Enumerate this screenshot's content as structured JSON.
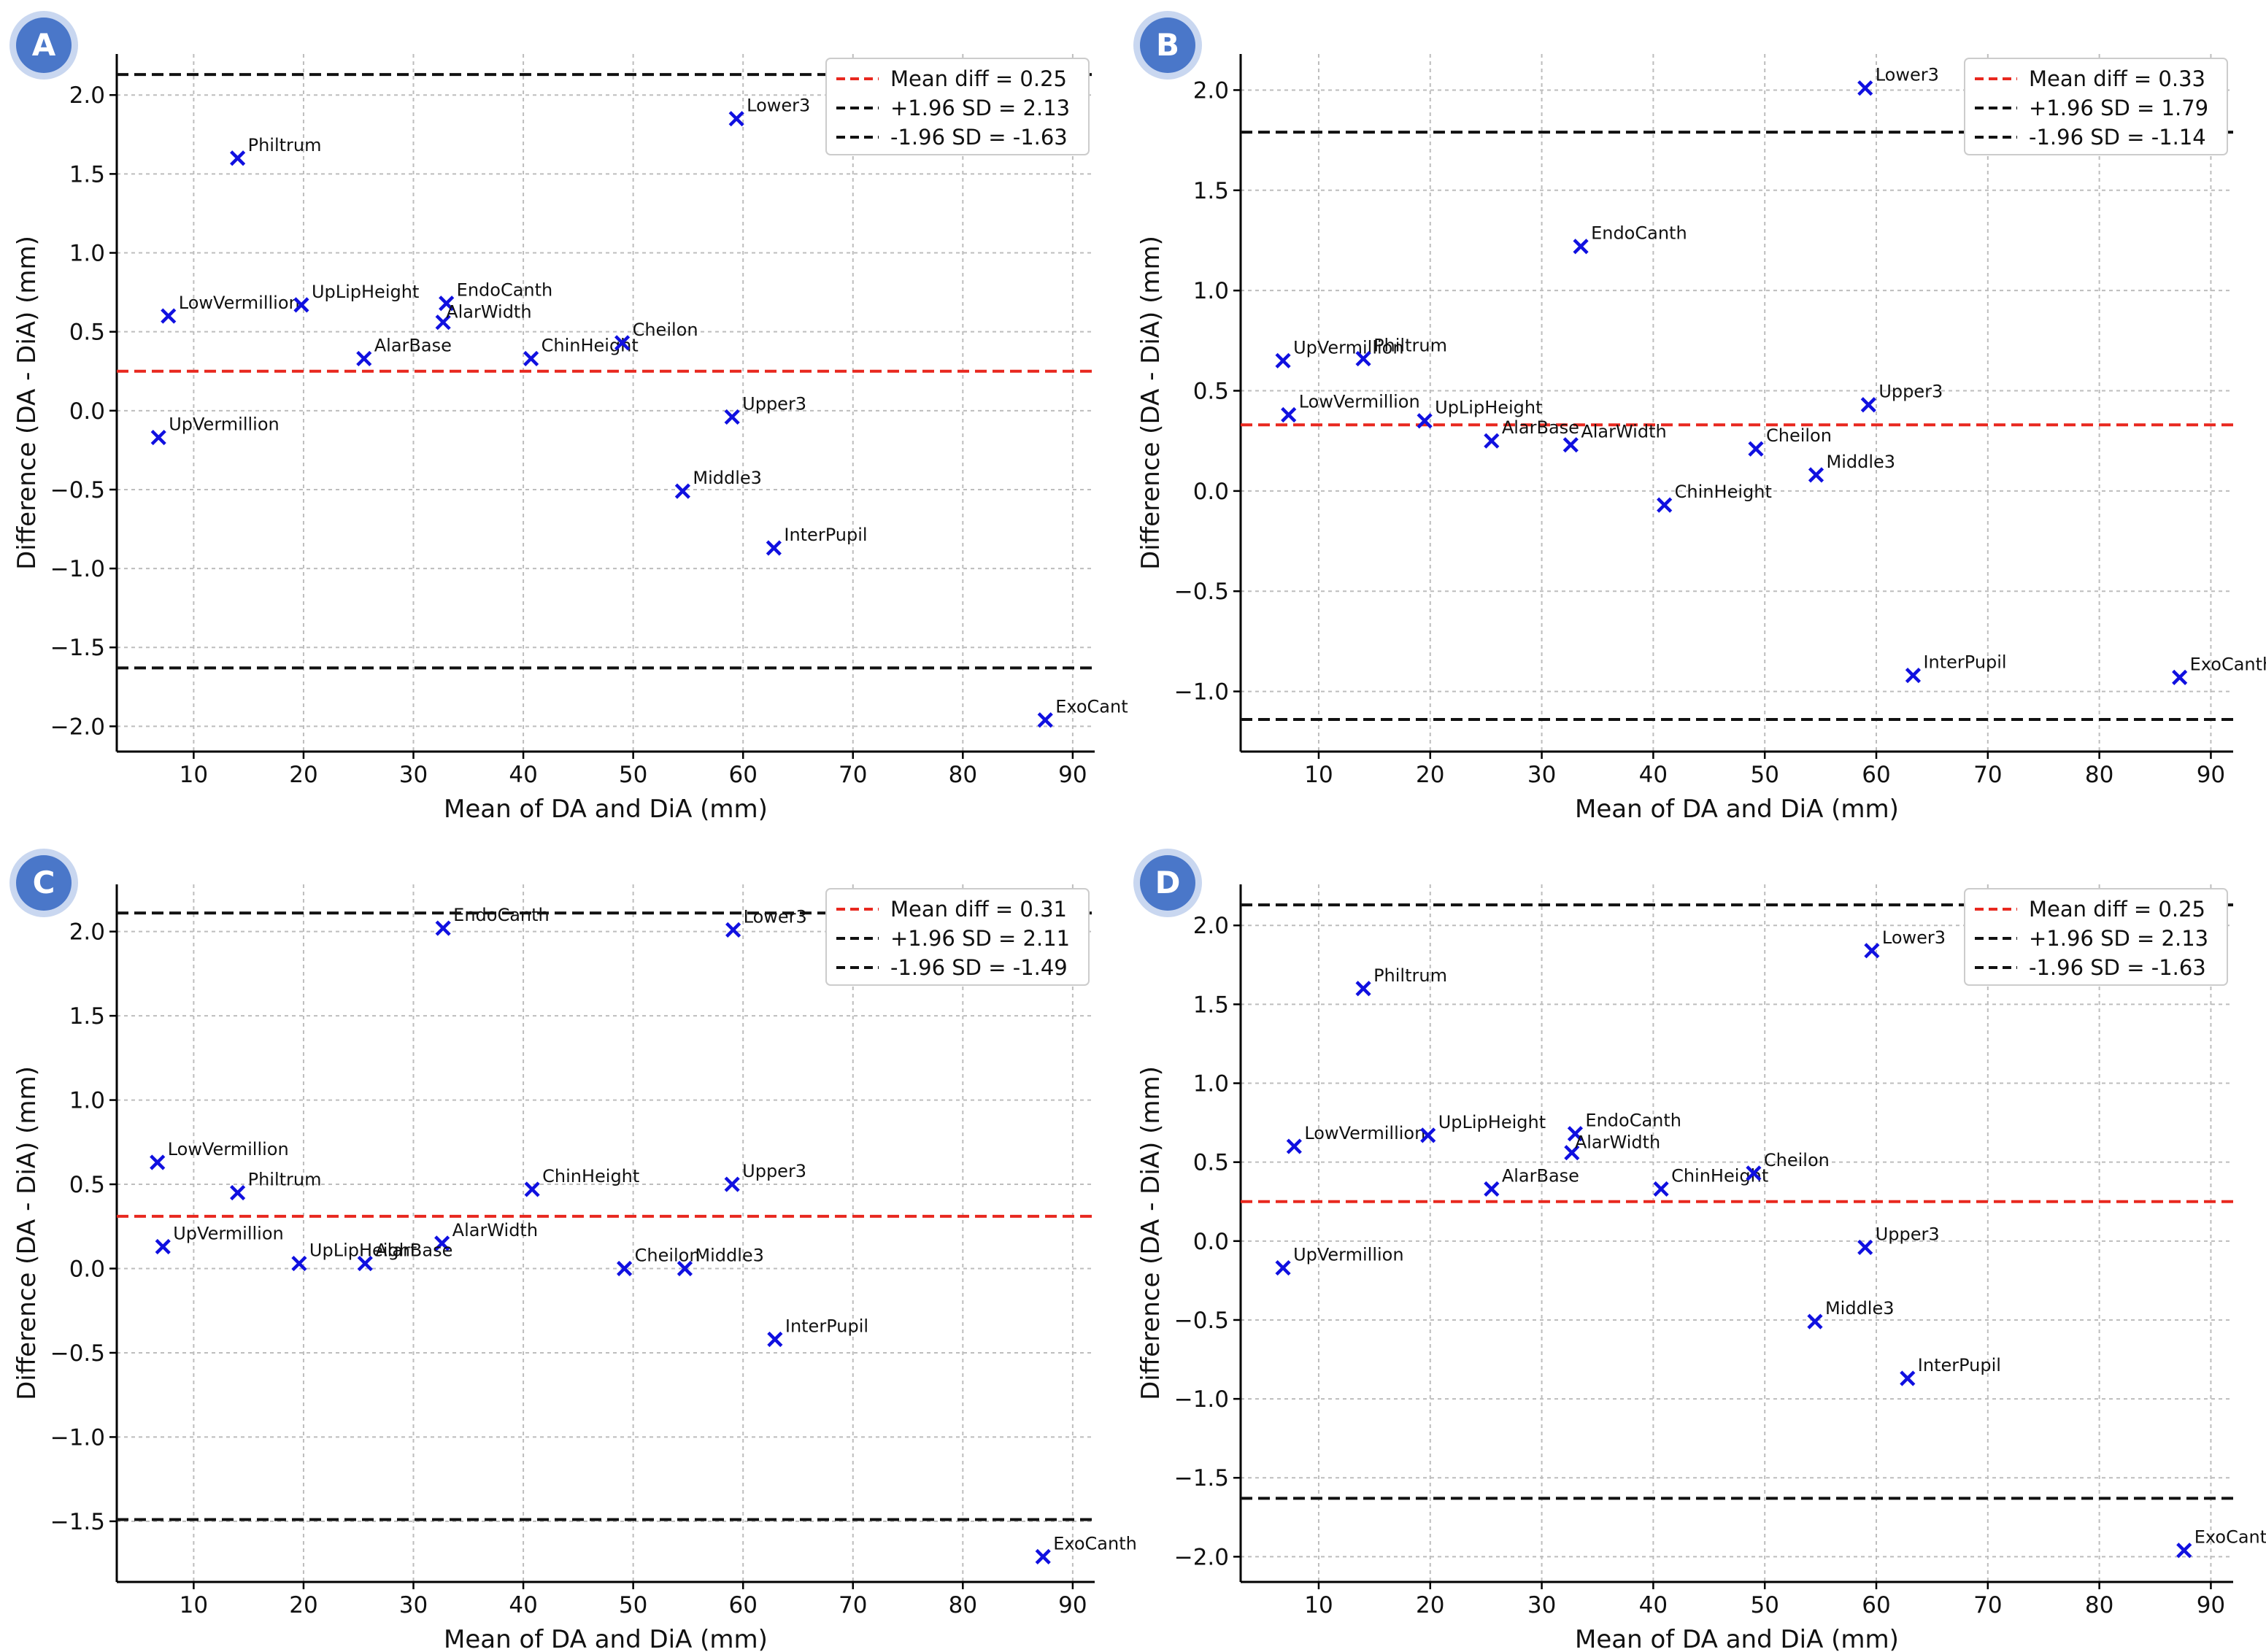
{
  "chart_data": [
    {
      "panel": "A",
      "type": "scatter",
      "xlabel": "Mean of DA and DiA (mm)",
      "ylabel": "Difference (DA - DiA) (mm)",
      "xlim": [
        3,
        92
      ],
      "ylim": [
        -2.16,
        2.26
      ],
      "x_ticks": [
        10,
        20,
        30,
        40,
        50,
        60,
        70,
        80,
        90
      ],
      "y_ticks": [
        2.0,
        1.5,
        1.0,
        0.5,
        0.0,
        -0.5,
        -1.0,
        -1.5,
        -2.0
      ],
      "grid": true,
      "legend_position": "top-right",
      "series": [
        {
          "label": "Philtrum",
          "x": 14.0,
          "y": 1.6
        },
        {
          "label": "Lower3",
          "x": 59.4,
          "y": 1.85
        },
        {
          "label": "LowVermillion",
          "x": 7.7,
          "y": 0.6
        },
        {
          "label": "UpLipHeight",
          "x": 19.8,
          "y": 0.67
        },
        {
          "label": "EndoCanth",
          "x": 33.0,
          "y": 0.68
        },
        {
          "label": "AlarWidth",
          "x": 32.7,
          "y": 0.56
        },
        {
          "label": "AlarBase",
          "x": 25.5,
          "y": 0.33
        },
        {
          "label": "ChinHeight",
          "x": 40.7,
          "y": 0.33
        },
        {
          "label": "Cheilon",
          "x": 49.0,
          "y": 0.43
        },
        {
          "label": "UpVermillion",
          "x": 6.8,
          "y": -0.17
        },
        {
          "label": "Upper3",
          "x": 59.0,
          "y": -0.04
        },
        {
          "label": "Middle3",
          "x": 54.5,
          "y": -0.51
        },
        {
          "label": "InterPupil",
          "x": 62.8,
          "y": -0.87
        },
        {
          "label": "ExoCant",
          "x": 87.5,
          "y": -1.96
        }
      ],
      "lines": [
        {
          "label": "Mean diff = 0.25",
          "y": 0.25,
          "color": "#e8281f"
        },
        {
          "label": "+1.96 SD = 2.13",
          "y": 2.13,
          "color": "#111111"
        },
        {
          "label": "-1.96 SD = -1.63",
          "y": -1.63,
          "color": "#111111"
        }
      ]
    },
    {
      "panel": "B",
      "type": "scatter",
      "xlabel": "Mean of DA and DiA (mm)",
      "ylabel": "Difference (DA - DiA) (mm)",
      "xlim": [
        3,
        92
      ],
      "ylim": [
        -1.3,
        2.18
      ],
      "x_ticks": [
        10,
        20,
        30,
        40,
        50,
        60,
        70,
        80,
        90
      ],
      "y_ticks": [
        2.0,
        1.5,
        1.0,
        0.5,
        0.0,
        -0.5,
        -1.0
      ],
      "grid": true,
      "legend_position": "top-right",
      "series": [
        {
          "label": "Lower3",
          "x": 59.0,
          "y": 2.01
        },
        {
          "label": "EndoCanth",
          "x": 33.5,
          "y": 1.22
        },
        {
          "label": "UpVermillion",
          "x": 6.8,
          "y": 0.65
        },
        {
          "label": "Philtrum",
          "x": 14.0,
          "y": 0.66
        },
        {
          "label": "LowVermillion",
          "x": 7.3,
          "y": 0.38
        },
        {
          "label": "UpLipHeight",
          "x": 19.5,
          "y": 0.35
        },
        {
          "label": "AlarBase",
          "x": 25.5,
          "y": 0.25
        },
        {
          "label": "AlarWidth",
          "x": 32.6,
          "y": 0.23
        },
        {
          "label": "Cheilon",
          "x": 49.2,
          "y": 0.21
        },
        {
          "label": "Middle3",
          "x": 54.6,
          "y": 0.08
        },
        {
          "label": "Upper3",
          "x": 59.3,
          "y": 0.43
        },
        {
          "label": "ChinHeight",
          "x": 41.0,
          "y": -0.07
        },
        {
          "label": "InterPupil",
          "x": 63.3,
          "y": -0.92
        },
        {
          "label": "ExoCanth",
          "x": 87.2,
          "y": -0.93
        }
      ],
      "lines": [
        {
          "label": "Mean diff = 0.33",
          "y": 0.33,
          "color": "#e8281f"
        },
        {
          "label": "+1.96 SD = 1.79",
          "y": 1.79,
          "color": "#111111"
        },
        {
          "label": "-1.96 SD = -1.14",
          "y": -1.14,
          "color": "#111111"
        }
      ]
    },
    {
      "panel": "C",
      "type": "scatter",
      "xlabel": "Mean of DA and DiA (mm)",
      "ylabel": "Difference (DA - DiA) (mm)",
      "xlim": [
        3,
        92
      ],
      "ylim": [
        -1.86,
        2.28
      ],
      "x_ticks": [
        10,
        20,
        30,
        40,
        50,
        60,
        70,
        80,
        90
      ],
      "y_ticks": [
        2.0,
        1.5,
        1.0,
        0.5,
        0.0,
        -0.5,
        -1.0,
        -1.5
      ],
      "grid": true,
      "legend_position": "top-right",
      "series": [
        {
          "label": "EndoCanth",
          "x": 32.7,
          "y": 2.02
        },
        {
          "label": "Lower3",
          "x": 59.1,
          "y": 2.01
        },
        {
          "label": "LowVermillion",
          "x": 6.7,
          "y": 0.63
        },
        {
          "label": "Philtrum",
          "x": 14.0,
          "y": 0.45
        },
        {
          "label": "ChinHeight",
          "x": 40.8,
          "y": 0.47
        },
        {
          "label": "Upper3",
          "x": 59.0,
          "y": 0.5
        },
        {
          "label": "UpVermillion",
          "x": 7.2,
          "y": 0.13
        },
        {
          "label": "AlarWidth",
          "x": 32.6,
          "y": 0.15
        },
        {
          "label": "UpLipHeight",
          "x": 19.6,
          "y": 0.03
        },
        {
          "label": "AlarBase",
          "x": 25.6,
          "y": 0.03
        },
        {
          "label": "Cheilon",
          "x": 49.2,
          "y": 0.0
        },
        {
          "label": "Middle3",
          "x": 54.7,
          "y": 0.0
        },
        {
          "label": "InterPupil",
          "x": 62.9,
          "y": -0.42
        },
        {
          "label": "ExoCanth",
          "x": 87.3,
          "y": -1.71
        }
      ],
      "lines": [
        {
          "label": "Mean diff = 0.31",
          "y": 0.31,
          "color": "#e8281f"
        },
        {
          "label": "+1.96 SD = 2.11",
          "y": 2.11,
          "color": "#111111"
        },
        {
          "label": "-1.96 SD = -1.49",
          "y": -1.49,
          "color": "#111111"
        }
      ]
    },
    {
      "panel": "D",
      "type": "scatter",
      "xlabel": "Mean of DA and DiA (mm)",
      "ylabel": "Difference (DA - DiA) (mm)",
      "xlim": [
        3,
        92
      ],
      "ylim": [
        -2.16,
        2.26
      ],
      "x_ticks": [
        10,
        20,
        30,
        40,
        50,
        60,
        70,
        80,
        90
      ],
      "y_ticks": [
        2.0,
        1.5,
        1.0,
        0.5,
        0.0,
        -0.5,
        -1.0,
        -1.5,
        -2.0
      ],
      "grid": true,
      "legend_position": "top-right",
      "series": [
        {
          "label": "Philtrum",
          "x": 14.0,
          "y": 1.6
        },
        {
          "label": "Lower3",
          "x": 59.6,
          "y": 1.84
        },
        {
          "label": "LowVermillion",
          "x": 7.8,
          "y": 0.6
        },
        {
          "label": "UpLipHeight",
          "x": 19.8,
          "y": 0.67
        },
        {
          "label": "EndoCanth",
          "x": 33.0,
          "y": 0.68
        },
        {
          "label": "AlarWidth",
          "x": 32.7,
          "y": 0.56
        },
        {
          "label": "AlarBase",
          "x": 25.5,
          "y": 0.33
        },
        {
          "label": "ChinHeight",
          "x": 40.7,
          "y": 0.33
        },
        {
          "label": "Cheilon",
          "x": 49.0,
          "y": 0.43
        },
        {
          "label": "UpVermillion",
          "x": 6.8,
          "y": -0.17
        },
        {
          "label": "Upper3",
          "x": 59.0,
          "y": -0.04
        },
        {
          "label": "Middle3",
          "x": 54.5,
          "y": -0.51
        },
        {
          "label": "InterPupil",
          "x": 62.8,
          "y": -0.87
        },
        {
          "label": "ExoCanth",
          "x": 87.6,
          "y": -1.96
        }
      ],
      "lines": [
        {
          "label": "Mean diff = 0.25",
          "y": 0.25,
          "color": "#e8281f"
        },
        {
          "label": "+1.96 SD = 2.13",
          "y": 2.13,
          "color": "#111111"
        },
        {
          "label": "-1.96 SD = -1.63",
          "y": -1.63,
          "color": "#111111"
        }
      ]
    }
  ],
  "colors": {
    "marker": "#1010e0",
    "mean_line": "#e8281f",
    "limit_line": "#111111",
    "badge_fill": "#4a77c9",
    "badge_ring": "#c9d7f0",
    "grid": "#bdbdbd"
  }
}
